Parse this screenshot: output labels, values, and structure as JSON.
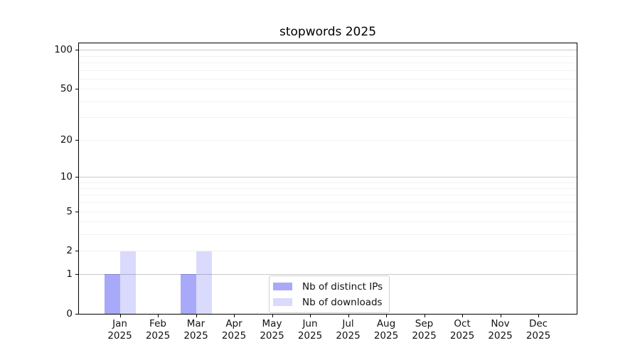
{
  "chart_data": {
    "type": "bar",
    "title": "stopwords 2025",
    "x": {
      "months": [
        "Jan",
        "Feb",
        "Mar",
        "Apr",
        "May",
        "Jun",
        "Jul",
        "Aug",
        "Sep",
        "Oct",
        "Nov",
        "Dec"
      ],
      "year": "2025"
    },
    "series": [
      {
        "name": "Nb of distinct IPs",
        "color": "#0a0af0",
        "alpha": 0.35,
        "values": [
          1,
          0,
          1,
          0,
          0,
          0,
          0,
          0,
          0,
          0,
          0,
          0
        ]
      },
      {
        "name": "Nb of downloads",
        "color": "#0a0af0",
        "alpha": 0.15,
        "values": [
          2,
          0,
          2,
          0,
          0,
          0,
          0,
          0,
          0,
          0,
          0,
          0
        ]
      }
    ],
    "y_axis": {
      "scale": "log10(1+value)",
      "tick_values": [
        0,
        1,
        2,
        5,
        10,
        20,
        50,
        100
      ],
      "top_value": 115
    },
    "grid": {
      "major_values": [
        1,
        10,
        100
      ],
      "minor_values": [
        2,
        3,
        4,
        5,
        6,
        7,
        8,
        9,
        20,
        30,
        40,
        50,
        60,
        70,
        80,
        90
      ],
      "major_color": "#c9c9c9",
      "minor_color": "#f2f2f2"
    },
    "legend": {
      "position": "bottom-center"
    },
    "colors": {
      "axis": "#000000",
      "text": "#111111",
      "legend_border": "#d0d0d0",
      "background": "#ffffff"
    }
  }
}
